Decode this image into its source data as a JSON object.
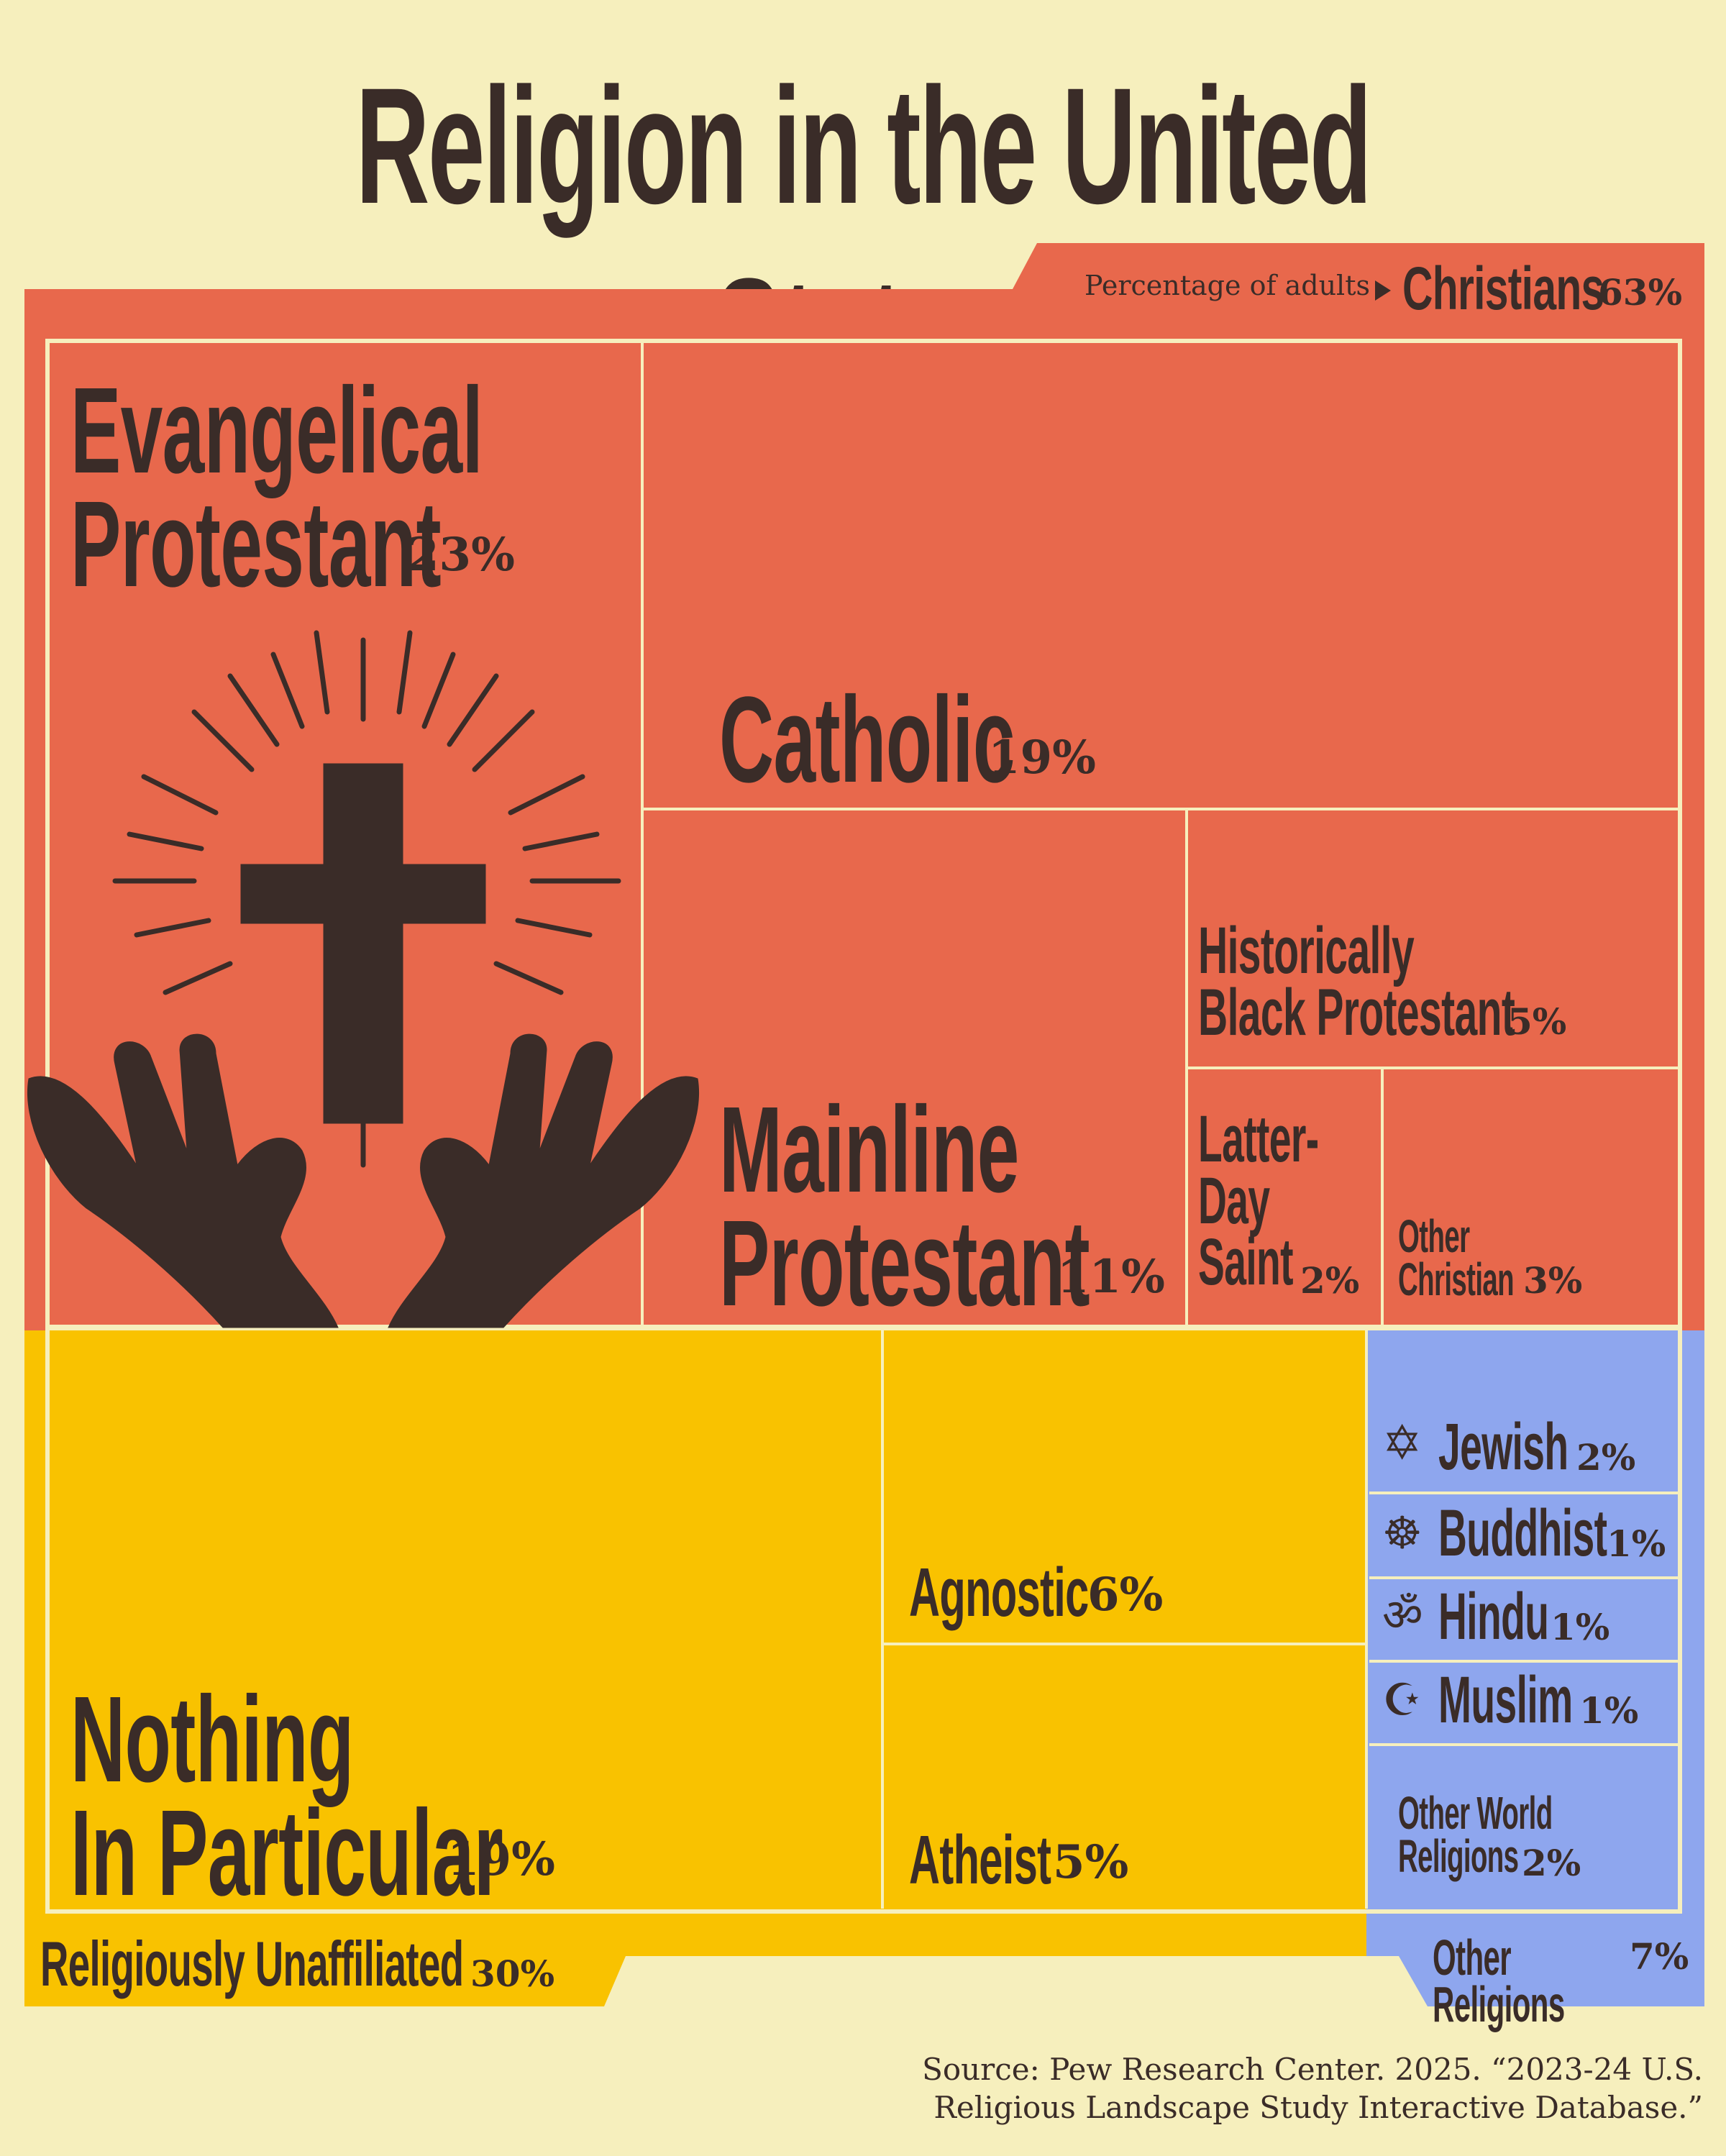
{
  "title": "Religion in the United States",
  "subtitle": "Percentage of adults",
  "groups": {
    "christians": {
      "name": "Christians",
      "pct": "63%"
    },
    "unaffiliated": {
      "name": "Religiously Unaffiliated",
      "pct": "30%"
    },
    "other": {
      "name": "Other Religions",
      "pct": "7%"
    }
  },
  "labels": {
    "evangelical_1": "Evangelical",
    "evangelical_2": "Protestant",
    "evangelical_pct": "23%",
    "catholic": "Catholic",
    "catholic_pct": "19%",
    "mainline_1": "Mainline",
    "mainline_2": "Protestant",
    "mainline_pct": "11%",
    "black_1": "Historically",
    "black_2": "Black Protestant",
    "black_pct": "5%",
    "lds_1": "Latter-",
    "lds_2": "Day",
    "lds_3": "Saint",
    "lds_pct": "2%",
    "otherchr_1": "Other",
    "otherchr_2": "Christian",
    "otherchr_pct": "3%",
    "nothing_1": "Nothing",
    "nothing_2": "In Particular",
    "nothing_pct": "19%",
    "agnostic": "Agnostic",
    "agnostic_pct": "6%",
    "atheist": "Atheist",
    "atheist_pct": "5%",
    "jewish": "Jewish",
    "jewish_pct": "2%",
    "buddhist": "Buddhist",
    "buddhist_pct": "1%",
    "hindu": "Hindu",
    "hindu_pct": "1%",
    "muslim": "Muslim",
    "muslim_pct": "1%",
    "otherworld_1": "Other World",
    "otherworld_2": "Religions",
    "otherworld_pct": "2%"
  },
  "icons": {
    "jewish": "✡",
    "buddhist": "☸",
    "hindu": "ॐ",
    "muslim": "☪"
  },
  "source_1": "Source: Pew Research Center. 2025. “2023-24 U.S.",
  "source_2": "Religious Landscape Study Interactive Database.”",
  "colors": {
    "christian": "#e8684c",
    "unaffiliated": "#f9c200",
    "other": "#8ea6ee",
    "ink": "#3a2c28",
    "background": "#f6efbd"
  },
  "chart_data": {
    "type": "treemap",
    "title": "Religion in the United States",
    "unit": "Percentage of adults",
    "groups": [
      {
        "name": "Christians",
        "value": 63,
        "children": [
          {
            "name": "Evangelical Protestant",
            "value": 23
          },
          {
            "name": "Catholic",
            "value": 19
          },
          {
            "name": "Mainline Protestant",
            "value": 11
          },
          {
            "name": "Historically Black Protestant",
            "value": 5
          },
          {
            "name": "Latter-Day Saint",
            "value": 2
          },
          {
            "name": "Other Christian",
            "value": 3
          }
        ]
      },
      {
        "name": "Religiously Unaffiliated",
        "value": 30,
        "children": [
          {
            "name": "Nothing In Particular",
            "value": 19
          },
          {
            "name": "Agnostic",
            "value": 6
          },
          {
            "name": "Atheist",
            "value": 5
          }
        ]
      },
      {
        "name": "Other Religions",
        "value": 7,
        "children": [
          {
            "name": "Jewish",
            "value": 2
          },
          {
            "name": "Buddhist",
            "value": 1
          },
          {
            "name": "Hindu",
            "value": 1
          },
          {
            "name": "Muslim",
            "value": 1
          },
          {
            "name": "Other World Religions",
            "value": 2
          }
        ]
      }
    ]
  }
}
